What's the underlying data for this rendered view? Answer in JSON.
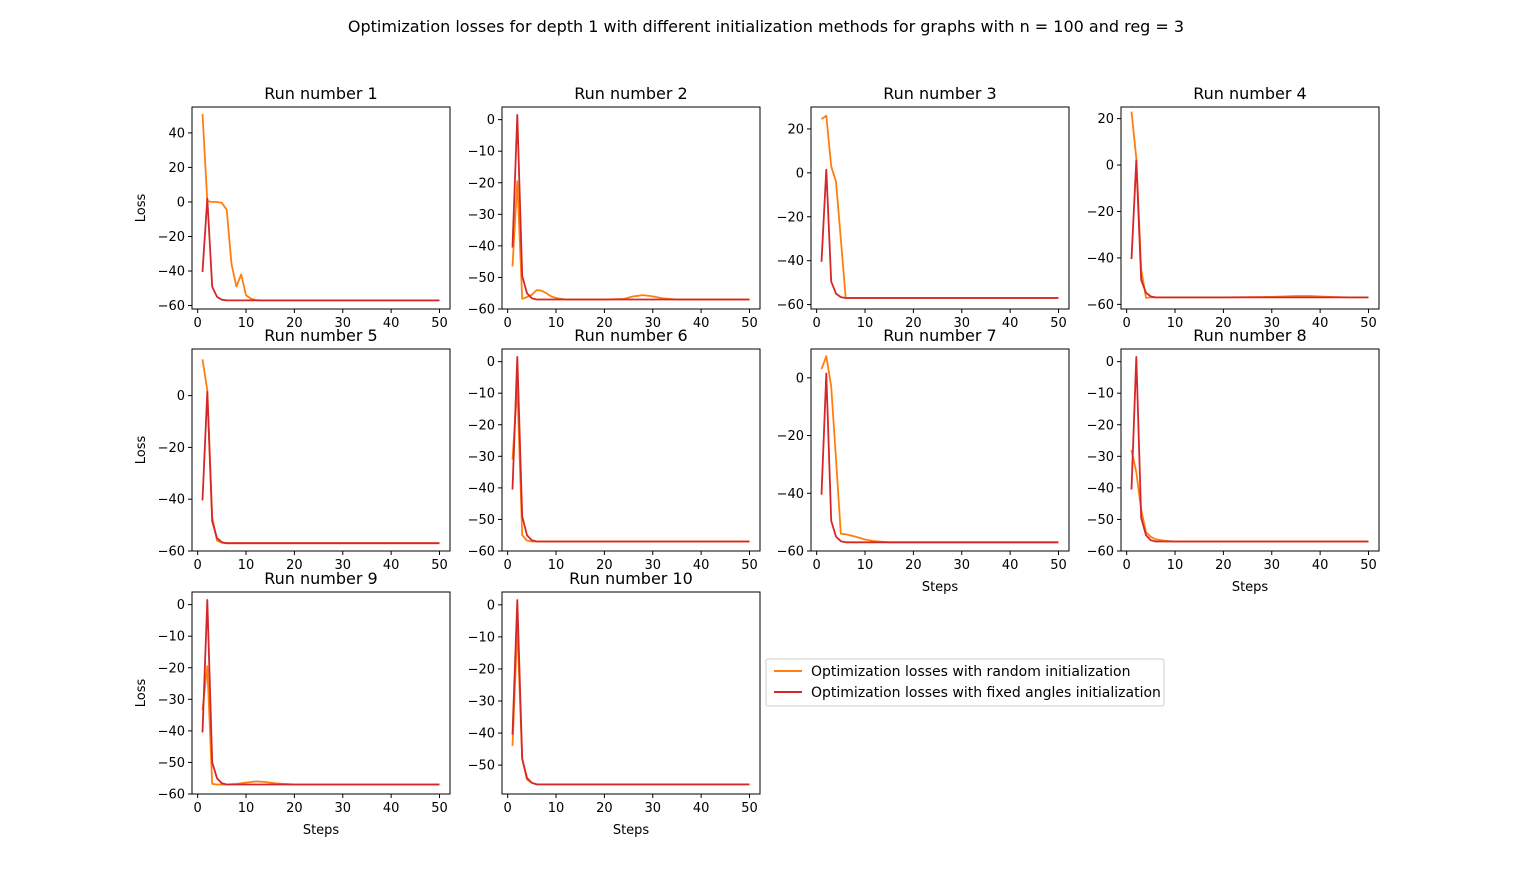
{
  "figure": {
    "title": "Optimization losses for depth 1 with different initialization methods for graphs with n = 100 and reg = 3"
  },
  "legend": {
    "entries": [
      {
        "label": "Optimization losses with random initialization",
        "color": "#ff7f0e"
      },
      {
        "label": "Optimization losses with fixed angles initialization",
        "color": "#d62728"
      }
    ]
  },
  "chart_data": [
    {
      "type": "line",
      "title": "Run number 1",
      "xlabel": "",
      "ylabel": "Loss",
      "xlim": [
        1,
        50
      ],
      "ylim": [
        -62,
        55
      ],
      "xticks": [
        0,
        10,
        20,
        30,
        40,
        50
      ],
      "yticks": [
        -60,
        -40,
        -20,
        0,
        20,
        40
      ],
      "series": [
        {
          "name": "Optimization losses with random initialization",
          "color": "#ff7f0e",
          "x": [
            1,
            2,
            3,
            4,
            5,
            6,
            7,
            8,
            9,
            10,
            11,
            12,
            13,
            15,
            20,
            30,
            40,
            50
          ],
          "y": [
            51,
            0.5,
            0,
            0,
            -0.5,
            -4.5,
            -36,
            -49,
            -42,
            -54,
            -56,
            -56.8,
            -57,
            -57,
            -57,
            -57,
            -57,
            -57
          ]
        },
        {
          "name": "Optimization losses with fixed angles initialization",
          "color": "#d62728",
          "x": [
            1,
            2,
            3,
            4,
            5,
            6,
            7,
            10,
            20,
            30,
            40,
            50
          ],
          "y": [
            -40.5,
            2,
            -49,
            -55,
            -56.6,
            -57,
            -57,
            -57,
            -57,
            -57,
            -57,
            -57
          ]
        }
      ]
    },
    {
      "type": "line",
      "title": "Run number 2",
      "xlabel": "",
      "ylabel": "",
      "xlim": [
        1,
        50
      ],
      "ylim": [
        -60,
        4
      ],
      "xticks": [
        0,
        10,
        20,
        30,
        40,
        50
      ],
      "yticks": [
        -60,
        -50,
        -40,
        -30,
        -20,
        -10,
        0
      ],
      "series": [
        {
          "name": "Optimization losses with random initialization",
          "color": "#ff7f0e",
          "x": [
            1,
            2,
            3,
            4,
            5,
            6,
            7,
            8,
            9,
            10,
            12,
            15,
            20,
            24,
            26,
            28,
            30,
            32,
            35,
            40,
            50
          ],
          "y": [
            -46.5,
            -19.5,
            -56.8,
            -56.2,
            -55.5,
            -54,
            -54.2,
            -55,
            -56,
            -56.5,
            -57,
            -57,
            -57,
            -56.8,
            -56,
            -55.6,
            -56,
            -56.6,
            -57,
            -57,
            -57
          ]
        },
        {
          "name": "Optimization losses with fixed angles initialization",
          "color": "#d62728",
          "x": [
            1,
            2,
            3,
            4,
            5,
            6,
            8,
            10,
            20,
            30,
            40,
            50
          ],
          "y": [
            -40.5,
            1.5,
            -49.5,
            -55,
            -56.6,
            -57,
            -57,
            -57,
            -57,
            -57,
            -57,
            -57
          ]
        }
      ]
    },
    {
      "type": "line",
      "title": "Run number 3",
      "xlabel": "",
      "ylabel": "",
      "xlim": [
        1,
        50
      ],
      "ylim": [
        -62,
        30
      ],
      "xticks": [
        0,
        10,
        20,
        30,
        40,
        50
      ],
      "yticks": [
        -60,
        -40,
        -20,
        0,
        20
      ],
      "series": [
        {
          "name": "Optimization losses with random initialization",
          "color": "#ff7f0e",
          "x": [
            1,
            2,
            3,
            4,
            5,
            6,
            7,
            10,
            20,
            30,
            40,
            50
          ],
          "y": [
            24.5,
            26,
            3,
            -4,
            -30,
            -57,
            -57,
            -57,
            -57,
            -57,
            -57,
            -57
          ]
        },
        {
          "name": "Optimization losses with fixed angles initialization",
          "color": "#d62728",
          "x": [
            1,
            2,
            3,
            4,
            5,
            6,
            8,
            10,
            20,
            30,
            40,
            50
          ],
          "y": [
            -40.5,
            1.5,
            -49.5,
            -55,
            -56.6,
            -57,
            -57,
            -57,
            -57,
            -57,
            -57,
            -57
          ]
        }
      ]
    },
    {
      "type": "line",
      "title": "Run number 4",
      "xlabel": "",
      "ylabel": "",
      "xlim": [
        1,
        50
      ],
      "ylim": [
        -62,
        25
      ],
      "xticks": [
        0,
        10,
        20,
        30,
        40,
        50
      ],
      "yticks": [
        -60,
        -40,
        -20,
        0,
        20
      ],
      "series": [
        {
          "name": "Optimization losses with random initialization",
          "color": "#ff7f0e",
          "x": [
            1,
            2,
            3,
            4,
            5,
            6,
            8,
            10,
            20,
            30,
            35,
            38,
            42,
            46,
            50
          ],
          "y": [
            23,
            3,
            -45,
            -57.2,
            -57,
            -57,
            -57,
            -57,
            -57,
            -56.8,
            -56.4,
            -56.4,
            -56.8,
            -57,
            -57
          ]
        },
        {
          "name": "Optimization losses with fixed angles initialization",
          "color": "#d62728",
          "x": [
            1,
            2,
            3,
            4,
            5,
            6,
            8,
            10,
            20,
            30,
            40,
            50
          ],
          "y": [
            -40.5,
            2,
            -49.5,
            -55,
            -56.6,
            -57,
            -57,
            -57,
            -57,
            -57,
            -57,
            -57
          ]
        }
      ]
    },
    {
      "type": "line",
      "title": "Run number 5",
      "xlabel": "",
      "ylabel": "Loss",
      "xlim": [
        1,
        50
      ],
      "ylim": [
        -60,
        18
      ],
      "xticks": [
        0,
        10,
        20,
        30,
        40,
        50
      ],
      "yticks": [
        -60,
        -40,
        -20,
        0
      ],
      "series": [
        {
          "name": "Optimization losses with random initialization",
          "color": "#ff7f0e",
          "x": [
            1,
            2,
            3,
            4,
            5,
            6,
            8,
            10,
            20,
            30,
            40,
            50
          ],
          "y": [
            14,
            2,
            -47,
            -56,
            -56.8,
            -57,
            -57,
            -57,
            -57,
            -57,
            -57,
            -57
          ]
        },
        {
          "name": "Optimization losses with fixed angles initialization",
          "color": "#d62728",
          "x": [
            1,
            2,
            3,
            4,
            5,
            6,
            8,
            10,
            20,
            30,
            40,
            50
          ],
          "y": [
            -40.5,
            1.5,
            -48.5,
            -55,
            -56.6,
            -57,
            -57,
            -57,
            -57,
            -57,
            -57,
            -57
          ]
        }
      ]
    },
    {
      "type": "line",
      "title": "Run number 6",
      "xlabel": "",
      "ylabel": "",
      "xlim": [
        1,
        50
      ],
      "ylim": [
        -60,
        4
      ],
      "xticks": [
        0,
        10,
        20,
        30,
        40,
        50
      ],
      "yticks": [
        -60,
        -50,
        -40,
        -30,
        -20,
        -10,
        0
      ],
      "series": [
        {
          "name": "Optimization losses with random initialization",
          "color": "#ff7f0e",
          "x": [
            1,
            2,
            3,
            4,
            5,
            6,
            8,
            10,
            20,
            30,
            40,
            50
          ],
          "y": [
            -31,
            -8,
            -55,
            -56.7,
            -57,
            -57,
            -57,
            -57,
            -57,
            -57,
            -57,
            -57
          ]
        },
        {
          "name": "Optimization losses with fixed angles initialization",
          "color": "#d62728",
          "x": [
            1,
            2,
            3,
            4,
            5,
            6,
            8,
            10,
            20,
            30,
            40,
            50
          ],
          "y": [
            -40.5,
            1.5,
            -49,
            -55,
            -56.6,
            -57,
            -57,
            -57,
            -57,
            -57,
            -57,
            -57
          ]
        }
      ]
    },
    {
      "type": "line",
      "title": "Run number 7",
      "xlabel": "Steps",
      "ylabel": "",
      "xlim": [
        1,
        50
      ],
      "ylim": [
        -60,
        10
      ],
      "xticks": [
        0,
        10,
        20,
        30,
        40,
        50
      ],
      "yticks": [
        -60,
        -40,
        -20,
        0
      ],
      "series": [
        {
          "name": "Optimization losses with random initialization",
          "color": "#ff7f0e",
          "x": [
            1,
            2,
            3,
            4,
            5,
            6,
            8,
            10,
            12,
            15,
            20,
            30,
            40,
            50
          ],
          "y": [
            3,
            7.5,
            -3,
            -28,
            -54,
            -54.2,
            -55,
            -56,
            -56.6,
            -57,
            -57,
            -57,
            -57,
            -57
          ]
        },
        {
          "name": "Optimization losses with fixed angles initialization",
          "color": "#d62728",
          "x": [
            1,
            2,
            3,
            4,
            5,
            6,
            8,
            10,
            20,
            30,
            40,
            50
          ],
          "y": [
            -40.5,
            1.5,
            -49.5,
            -55,
            -56.6,
            -57,
            -57,
            -57,
            -57,
            -57,
            -57,
            -57
          ]
        }
      ]
    },
    {
      "type": "line",
      "title": "Run number 8",
      "xlabel": "Steps",
      "ylabel": "",
      "xlim": [
        1,
        50
      ],
      "ylim": [
        -60,
        4
      ],
      "xticks": [
        0,
        10,
        20,
        30,
        40,
        50
      ],
      "yticks": [
        -60,
        -50,
        -40,
        -30,
        -20,
        -10,
        0
      ],
      "series": [
        {
          "name": "Optimization losses with random initialization",
          "color": "#ff7f0e",
          "x": [
            1,
            2,
            3,
            4,
            5,
            6,
            8,
            10,
            20,
            30,
            40,
            50
          ],
          "y": [
            -28,
            -35,
            -47,
            -54,
            -55.5,
            -56.3,
            -56.8,
            -57,
            -57,
            -57,
            -57,
            -57
          ]
        },
        {
          "name": "Optimization losses with fixed angles initialization",
          "color": "#d62728",
          "x": [
            1,
            2,
            3,
            4,
            5,
            6,
            8,
            10,
            20,
            30,
            40,
            50
          ],
          "y": [
            -40.5,
            1.5,
            -49.5,
            -55,
            -56.6,
            -57,
            -57,
            -57,
            -57,
            -57,
            -57,
            -57
          ]
        }
      ]
    },
    {
      "type": "line",
      "title": "Run number 9",
      "xlabel": "Steps",
      "ylabel": "Loss",
      "xlim": [
        1,
        50
      ],
      "ylim": [
        -60,
        4
      ],
      "xticks": [
        0,
        10,
        20,
        30,
        40,
        50
      ],
      "yticks": [
        -60,
        -50,
        -40,
        -30,
        -20,
        -10,
        0
      ],
      "series": [
        {
          "name": "Optimization losses with random initialization",
          "color": "#ff7f0e",
          "x": [
            1,
            2,
            3,
            4,
            5,
            6,
            8,
            10,
            12,
            14,
            16,
            20,
            25,
            30,
            40,
            50
          ],
          "y": [
            -33.5,
            -19.5,
            -56.8,
            -57,
            -57,
            -57,
            -56.8,
            -56.4,
            -56,
            -56.2,
            -56.6,
            -57,
            -57,
            -57,
            -57,
            -57
          ]
        },
        {
          "name": "Optimization losses with fixed angles initialization",
          "color": "#d62728",
          "x": [
            1,
            2,
            3,
            4,
            5,
            6,
            8,
            10,
            20,
            30,
            40,
            50
          ],
          "y": [
            -40.5,
            1.5,
            -50,
            -55,
            -56.6,
            -57,
            -57,
            -57,
            -57,
            -57,
            -57,
            -57
          ]
        }
      ]
    },
    {
      "type": "line",
      "title": "Run number 10",
      "xlabel": "Steps",
      "ylabel": "",
      "xlim": [
        1,
        50
      ],
      "ylim": [
        -59,
        4
      ],
      "xticks": [
        0,
        10,
        20,
        30,
        40,
        50
      ],
      "yticks": [
        -50,
        -40,
        -30,
        -20,
        -10,
        0
      ],
      "series": [
        {
          "name": "Optimization losses with random initialization",
          "color": "#ff7f0e",
          "x": [
            1,
            2,
            3,
            4,
            5,
            6,
            8,
            10,
            20,
            30,
            40,
            50
          ],
          "y": [
            -44,
            -7,
            -48,
            -54.5,
            -55.5,
            -56,
            -56,
            -56,
            -56,
            -56,
            -56,
            -56
          ]
        },
        {
          "name": "Optimization losses with fixed angles initialization",
          "color": "#d62728",
          "x": [
            1,
            2,
            3,
            4,
            5,
            6,
            8,
            10,
            20,
            30,
            40,
            50
          ],
          "y": [
            -40.5,
            1.5,
            -48,
            -54,
            -55.5,
            -56,
            -56,
            -56,
            -56,
            -56,
            -56,
            -56
          ]
        }
      ]
    }
  ]
}
